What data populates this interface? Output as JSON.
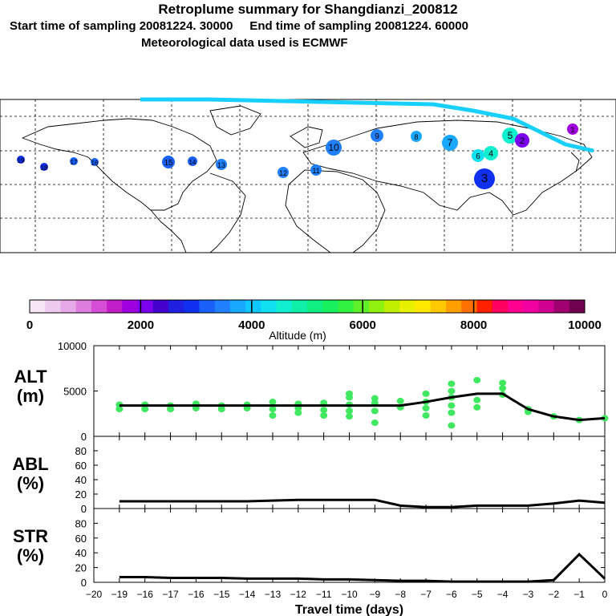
{
  "header": {
    "title": "Retroplume summary for Shangdianzi_200812",
    "sampling_line": "Start time of sampling 20081224. 30000     End time of sampling 20081224. 60000",
    "met_line": "Meteorological data used is ECMWF"
  },
  "colorbar": {
    "label": "Altitude (m)",
    "ticks": [
      "0",
      "2000",
      "4000",
      "6000",
      "8000",
      "10000"
    ],
    "colors": [
      "#f6e6f6",
      "#eecaee",
      "#e8a9e8",
      "#e07ee0",
      "#d64ed6",
      "#c21ec8",
      "#a000e0",
      "#7a00ee",
      "#4400cc",
      "#2020e0",
      "#1030f0",
      "#1860f8",
      "#2080ff",
      "#18a8ff",
      "#10c8ff",
      "#10e0f0",
      "#10f0d0",
      "#10f0a8",
      "#10f080",
      "#18f060",
      "#30f040",
      "#60f028",
      "#90f010",
      "#c0f000",
      "#e8f000",
      "#ffe800",
      "#ffc800",
      "#ffa000",
      "#ff7000",
      "#ff2000",
      "#ff0060",
      "#ff0090",
      "#f000a0",
      "#d00090",
      "#a00070",
      "#700050"
    ]
  },
  "map": {
    "labels": [
      {
        "t": "19",
        "a": 3000
      },
      {
        "t": "18",
        "a": 3000
      },
      {
        "t": "17",
        "a": 3200
      },
      {
        "t": "16",
        "a": 3200
      },
      {
        "t": "15",
        "a": 3300
      },
      {
        "t": "14",
        "a": 3300
      },
      {
        "t": "13",
        "a": 3400
      },
      {
        "t": "12",
        "a": 3400
      },
      {
        "t": "11",
        "a": 3500
      },
      {
        "t": "10",
        "a": 3500
      },
      {
        "t": "9",
        "a": 3500
      },
      {
        "t": "8",
        "a": 3700
      },
      {
        "t": "7",
        "a": 3800
      },
      {
        "t": "6",
        "a": 4200
      },
      {
        "t": "5",
        "a": 4600
      },
      {
        "t": "4",
        "a": 4700
      },
      {
        "t": "3",
        "a": 3000
      },
      {
        "t": "2",
        "a": 2200
      },
      {
        "t": "1",
        "a": 1800
      }
    ]
  },
  "chart_data": [
    {
      "type": "line",
      "panel": "ALT",
      "ylabel_top": "ALT",
      "ylabel_bottom": "(m)",
      "yticks": [
        "10000",
        "5000",
        "0"
      ],
      "ylim": [
        0,
        10000
      ],
      "xlim": [
        -20,
        0
      ],
      "x": [
        -19,
        -18,
        -17,
        -16,
        -15,
        -14,
        -13,
        -12,
        -11,
        -10,
        -9,
        -8,
        -7,
        -6,
        -5,
        -4,
        -3,
        -2,
        -1,
        0
      ],
      "values": [
        3400,
        3400,
        3400,
        3400,
        3400,
        3400,
        3400,
        3400,
        3400,
        3400,
        3400,
        3400,
        3800,
        4300,
        4700,
        4700,
        3000,
        2200,
        1800,
        2000
      ],
      "dots": [
        [
          -19,
          3500
        ],
        [
          -19,
          3000
        ],
        [
          -18,
          3500
        ],
        [
          -18,
          3000
        ],
        [
          -17,
          3400
        ],
        [
          -17,
          3000
        ],
        [
          -16,
          3600
        ],
        [
          -16,
          3100
        ],
        [
          -15,
          3400
        ],
        [
          -15,
          3000
        ],
        [
          -14,
          3500
        ],
        [
          -14,
          3100
        ],
        [
          -13,
          3800
        ],
        [
          -13,
          3000
        ],
        [
          -13,
          2300
        ],
        [
          -12,
          3600
        ],
        [
          -12,
          3100
        ],
        [
          -12,
          2600
        ],
        [
          -11,
          3700
        ],
        [
          -11,
          2900
        ],
        [
          -11,
          2300
        ],
        [
          -10,
          4700
        ],
        [
          -10,
          4300
        ],
        [
          -10,
          3500
        ],
        [
          -10,
          2800
        ],
        [
          -10,
          2200
        ],
        [
          -9,
          4200
        ],
        [
          -9,
          3700
        ],
        [
          -9,
          2800
        ],
        [
          -9,
          1500
        ],
        [
          -8,
          3900
        ],
        [
          -8,
          3200
        ],
        [
          -7,
          4700
        ],
        [
          -7,
          3800
        ],
        [
          -7,
          3100
        ],
        [
          -7,
          2300
        ],
        [
          -6,
          5800
        ],
        [
          -6,
          5000
        ],
        [
          -6,
          4300
        ],
        [
          -6,
          3400
        ],
        [
          -6,
          2600
        ],
        [
          -6,
          1200
        ],
        [
          -5,
          6200
        ],
        [
          -5,
          4000
        ],
        [
          -5,
          3200
        ],
        [
          -4,
          5900
        ],
        [
          -4,
          5300
        ],
        [
          -4,
          4600
        ],
        [
          -3,
          3000
        ],
        [
          -3,
          2700
        ],
        [
          -2,
          2200
        ],
        [
          -1,
          1800
        ],
        [
          0,
          2000
        ]
      ]
    },
    {
      "type": "line",
      "panel": "ABL",
      "ylabel_top": "ABL",
      "ylabel_bottom": "(%)",
      "yticks": [
        "80",
        "60",
        "40",
        "20",
        "0"
      ],
      "ylim": [
        0,
        100
      ],
      "xlim": [
        -20,
        0
      ],
      "x": [
        -19,
        -18,
        -17,
        -16,
        -15,
        -14,
        -13,
        -12,
        -11,
        -10,
        -9,
        -8,
        -7,
        -6,
        -5,
        -4,
        -3,
        -2,
        -1,
        0
      ],
      "values": [
        10,
        10,
        10,
        10,
        10,
        10,
        11,
        12,
        12,
        12,
        12,
        4,
        2,
        2,
        4,
        4,
        4,
        7,
        11,
        8
      ]
    },
    {
      "type": "line",
      "panel": "STR",
      "ylabel_top": "STR",
      "ylabel_bottom": "(%)",
      "yticks": [
        "80",
        "60",
        "40",
        "20",
        "0"
      ],
      "ylim": [
        0,
        100
      ],
      "xlim": [
        -20,
        0
      ],
      "xlabel": "Travel time (days)",
      "xticks": [
        "−20",
        "−19",
        "−16",
        "−17",
        "−16",
        "−15",
        "−14",
        "−13",
        "−12",
        "−11",
        "−10",
        "−9",
        "−8",
        "−7",
        "−6",
        "−5",
        "−4",
        "−3",
        "−2",
        "−1",
        "0"
      ],
      "x": [
        -19,
        -18,
        -17,
        -16,
        -15,
        -14,
        -13,
        -12,
        -11,
        -10,
        -9,
        -8,
        -7,
        -6,
        -5,
        -4,
        -3,
        -2,
        -1,
        0
      ],
      "values": [
        7,
        7,
        6,
        6,
        6,
        5,
        5,
        5,
        4,
        4,
        3,
        2,
        2,
        1,
        1,
        1,
        1,
        3,
        38,
        5
      ]
    }
  ]
}
